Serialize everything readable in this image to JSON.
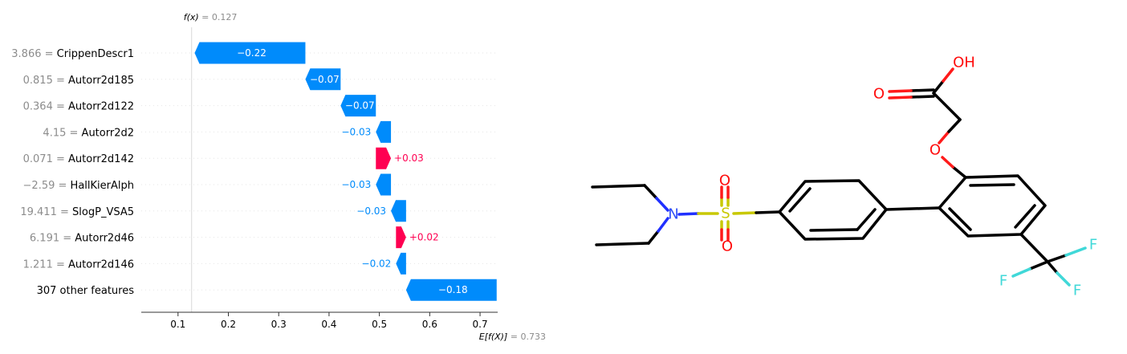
{
  "chart_data": {
    "type": "waterfall",
    "fx_label": "f(x)",
    "fx_value": "0.127",
    "base_label": "E[f(X)]",
    "base_value": "0.733",
    "fx": 0.127,
    "base": 0.733,
    "xlim": [
      0.027,
      0.735
    ],
    "xticks": [
      0.1,
      0.2,
      0.3,
      0.4,
      0.5,
      0.6,
      0.7
    ],
    "features": [
      {
        "value": "3.866",
        "name": "CrippenDescr1",
        "contribution": -0.22,
        "label": "−0.22"
      },
      {
        "value": "0.815",
        "name": "Autorr2d185",
        "contribution": -0.07,
        "label": "−0.07"
      },
      {
        "value": "0.364",
        "name": "Autorr2d122",
        "contribution": -0.07,
        "label": "−0.07"
      },
      {
        "value": "4.15",
        "name": "Autorr2d2",
        "contribution": -0.03,
        "label": "−0.03"
      },
      {
        "value": "0.071",
        "name": "Autorr2d142",
        "contribution": 0.03,
        "label": "+0.03"
      },
      {
        "value": "−2.59",
        "name": "HallKierAlph",
        "contribution": -0.03,
        "label": "−0.03"
      },
      {
        "value": "19.411",
        "name": "SlogP_VSA5",
        "contribution": -0.03,
        "label": "−0.03"
      },
      {
        "value": "6.191",
        "name": "Autorr2d46",
        "contribution": 0.02,
        "label": "+0.02"
      },
      {
        "value": "1.211",
        "name": "Autorr2d146",
        "contribution": -0.02,
        "label": "−0.02"
      },
      {
        "value": "",
        "name": "307 other features",
        "contribution": -0.18,
        "label": "−0.18"
      }
    ],
    "colors": {
      "positive": "#ff0051",
      "negative": "#008bfb",
      "muted": "#8c8c8c"
    }
  },
  "molecule": {
    "atoms": [
      {
        "symbol": "OH",
        "color": "#ff0d0d"
      },
      {
        "symbol": "O",
        "color": "#ff0d0d"
      },
      {
        "symbol": "O",
        "color": "#ff0d0d"
      },
      {
        "symbol": "N",
        "color": "#3050f8"
      },
      {
        "symbol": "S",
        "color": "#c8c800"
      },
      {
        "symbol": "O",
        "color": "#ff0d0d"
      },
      {
        "symbol": "O",
        "color": "#ff0d0d"
      },
      {
        "symbol": "F",
        "color": "#40d8d8"
      },
      {
        "symbol": "F",
        "color": "#40d8d8"
      },
      {
        "symbol": "F",
        "color": "#40d8d8"
      }
    ]
  }
}
